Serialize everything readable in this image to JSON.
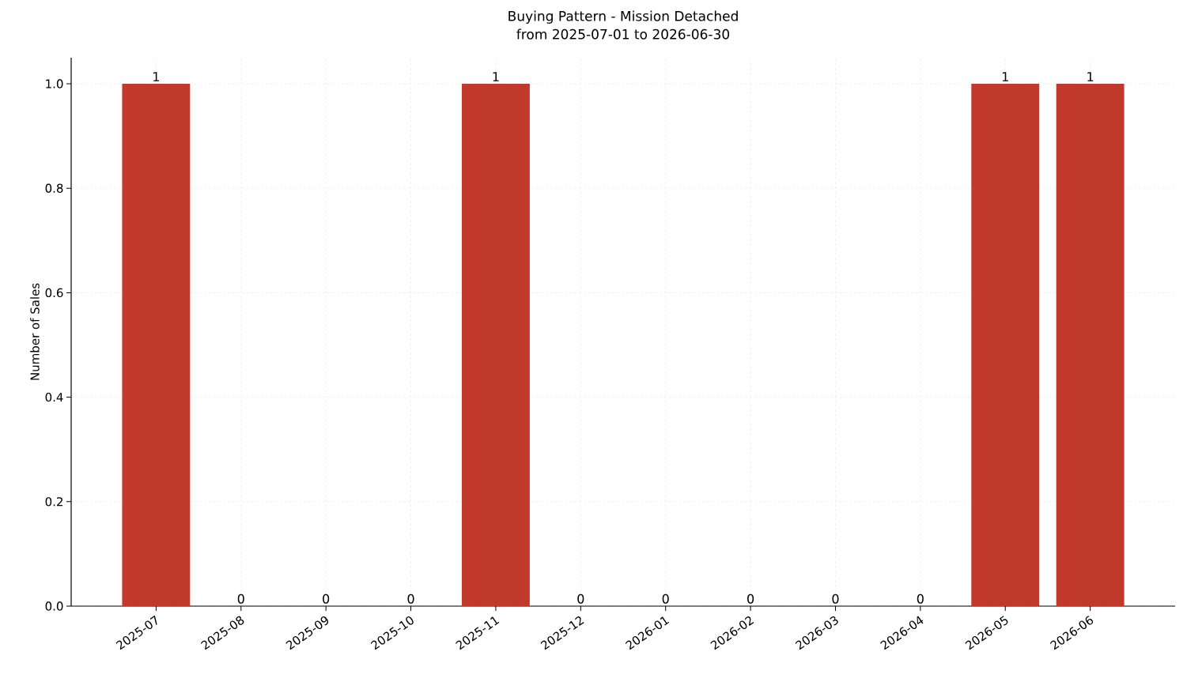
{
  "chart_data": {
    "type": "bar",
    "title": "Buying Pattern - Mission Detached",
    "subtitle": "from 2025-07-01 to 2026-06-30",
    "ylabel": "Number of Sales",
    "categories": [
      "2025-07",
      "2025-08",
      "2025-09",
      "2025-10",
      "2025-11",
      "2025-12",
      "2026-01",
      "2026-02",
      "2026-03",
      "2026-04",
      "2026-05",
      "2026-06"
    ],
    "values": [
      1,
      0,
      0,
      0,
      1,
      0,
      0,
      0,
      0,
      0,
      1,
      1
    ],
    "color": "#c0392b",
    "ylim": [
      0,
      1.05
    ],
    "yticks": [
      {
        "value": 0,
        "label": "0.0"
      },
      {
        "value": 0.2,
        "label": "0.2"
      },
      {
        "value": 0.4,
        "label": "0.4"
      },
      {
        "value": 0.6,
        "label": "0.6"
      },
      {
        "value": 0.8,
        "label": "0.8"
      },
      {
        "value": 1,
        "label": "1.0"
      }
    ],
    "grid": true,
    "data_labels": true
  }
}
